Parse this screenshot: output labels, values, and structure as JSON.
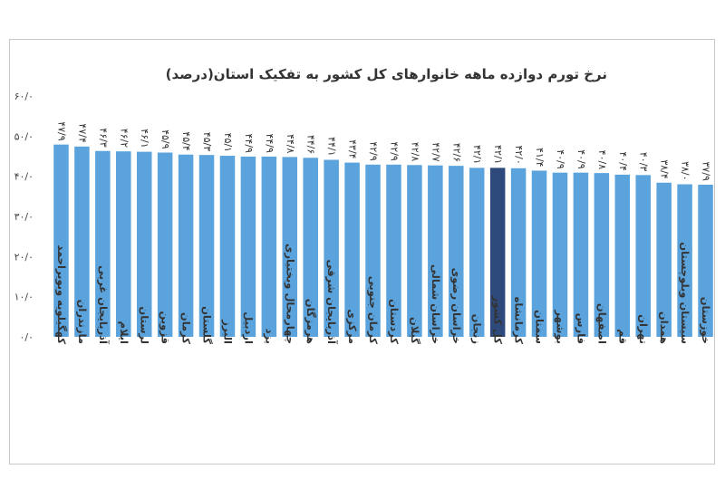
{
  "chart_data": {
    "type": "bar",
    "title": "نرخ تورم دوازده ماهه خانوارهای کل کشور به تفکیک استان(درصد)",
    "ylim": [
      0,
      60
    ],
    "yticks": [
      "۰/۰",
      "۱۰/۰",
      "۲۰/۰",
      "۳۰/۰",
      "۴۰/۰",
      "۵۰/۰",
      "۶۰/۰"
    ],
    "grid": false,
    "colors": {
      "bar": "#5ba3dc",
      "highlight": "#2e4a7d"
    },
    "highlight_category": "کل کشور",
    "categories": [
      "کهگیلویه وبویراحمد",
      "مازندران",
      "آذربایجان غربی",
      "ایلام",
      "لرستان",
      "قزوین",
      "کرمان",
      "گلستان",
      "البرز",
      "اردبیل",
      "یزد",
      "چهارمحال وبختیاری",
      "هرمزگان",
      "آذربایجان شرقی",
      "مرکزی",
      "کرمان جنوبی",
      "کردستان",
      "گیلان",
      "خراسان شمالی",
      "خراسان رضوی",
      "زنجان",
      "کل کشور",
      "کرمانشاه",
      "سمنان",
      "بوشهر",
      "فارس",
      "اصفهان",
      "قم",
      "تهران",
      "همدان",
      "سیستان وبلوچستان",
      "خوزستان"
    ],
    "values": [
      47.9,
      47.4,
      46.3,
      46.2,
      46.1,
      45.9,
      45.4,
      45.3,
      45.1,
      44.9,
      44.9,
      44.8,
      44.6,
      44.1,
      43.4,
      42.9,
      42.9,
      42.8,
      42.7,
      42.6,
      42.1,
      42.1,
      42.0,
      41.4,
      40.9,
      40.9,
      40.8,
      40.4,
      40.3,
      38.4,
      38.0,
      37.9
    ],
    "value_labels": [
      "۴۷/۹",
      "۴۷/۴",
      "۴۶/۳",
      "۴۶/۲",
      "۴۶/۱",
      "۴۵/۹",
      "۴۵/۴",
      "۴۵/۳",
      "۴۵/۱",
      "۴۴/۹",
      "۴۴/۹",
      "۴۴/۸",
      "۴۴/۶",
      "۴۴/۱",
      "۴۳/۴",
      "۴۲/۹",
      "۴۲/۹",
      "۴۲/۸",
      "۴۲/۷",
      "۴۲/۶",
      "۴۲/۱",
      "۴۲/۱",
      "۴۲/۰",
      "۴۱/۴",
      "۴۰/۹",
      "۴۰/۹",
      "۴۰/۸",
      "۴۰/۴",
      "۴۰/۳",
      "۳۸/۴",
      "۳۸/۰",
      "۳۷/۹"
    ]
  }
}
